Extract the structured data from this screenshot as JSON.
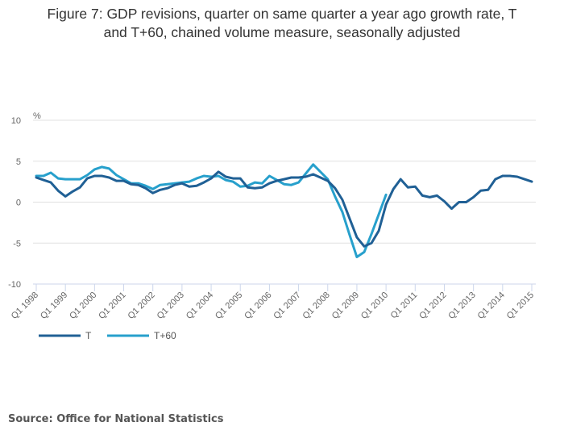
{
  "chart_data": {
    "type": "line",
    "title_lines": [
      "Figure 7: GDP revisions, quarter on same quarter a year ago growth rate, T",
      "and T+60, chained volume measure, seasonally adjusted"
    ],
    "ylabel": "%",
    "xlabel": "",
    "ylim": [
      -10,
      10
    ],
    "yticks": [
      10,
      5,
      0,
      -5,
      -10
    ],
    "grid": true,
    "legend_position": "bottom-left",
    "x_tick_labels": [
      "Q1 1998",
      "Q1 1999",
      "Q1 2000",
      "Q1 2001",
      "Q1 2002",
      "Q1 2003",
      "Q1 2004",
      "Q1 2005",
      "Q1 2006",
      "Q1 2007",
      "Q1 2008",
      "Q1 2009",
      "Q1 2010",
      "Q1 2011",
      "Q1 2012",
      "Q1 2013",
      "Q1 2014",
      "Q1 2015"
    ],
    "x_start": "Q1 1998",
    "quarters_count": 69,
    "series": [
      {
        "name": "T",
        "color": "#206095",
        "values": [
          3.0,
          2.7,
          2.4,
          1.4,
          0.7,
          1.3,
          1.8,
          2.9,
          3.2,
          3.2,
          3.0,
          2.6,
          2.6,
          2.2,
          2.1,
          1.7,
          1.1,
          1.5,
          1.7,
          2.1,
          2.3,
          1.9,
          2.0,
          2.4,
          2.9,
          3.7,
          3.1,
          2.9,
          2.9,
          1.8,
          1.7,
          1.8,
          2.3,
          2.6,
          2.8,
          3.0,
          3.0,
          3.1,
          3.4,
          3.0,
          2.6,
          1.7,
          0.3,
          -2.0,
          -4.3,
          -5.4,
          -5.0,
          -3.5,
          -0.3,
          1.6,
          2.8,
          1.8,
          1.9,
          0.8,
          0.6,
          0.8,
          0.1,
          -0.8,
          0.0,
          0.0,
          0.6,
          1.4,
          1.5,
          2.8,
          3.2,
          3.2,
          3.1,
          2.8,
          2.5
        ]
      },
      {
        "name": "T+60",
        "color": "#27a0cc",
        "values": [
          3.2,
          3.2,
          3.6,
          2.9,
          2.8,
          2.8,
          2.8,
          3.3,
          4.0,
          4.3,
          4.1,
          3.3,
          2.8,
          2.3,
          2.3,
          2.0,
          1.6,
          2.1,
          2.2,
          2.3,
          2.4,
          2.5,
          2.9,
          3.2,
          3.1,
          3.2,
          2.7,
          2.5,
          1.9,
          2.0,
          2.4,
          2.3,
          3.2,
          2.7,
          2.2,
          2.1,
          2.4,
          3.5,
          4.6,
          3.7,
          2.8,
          0.7,
          -1.2,
          -4.0,
          -6.7,
          -6.1,
          -3.9,
          -1.5,
          0.9
        ]
      }
    ]
  },
  "source": "Source: Office for National Statistics"
}
